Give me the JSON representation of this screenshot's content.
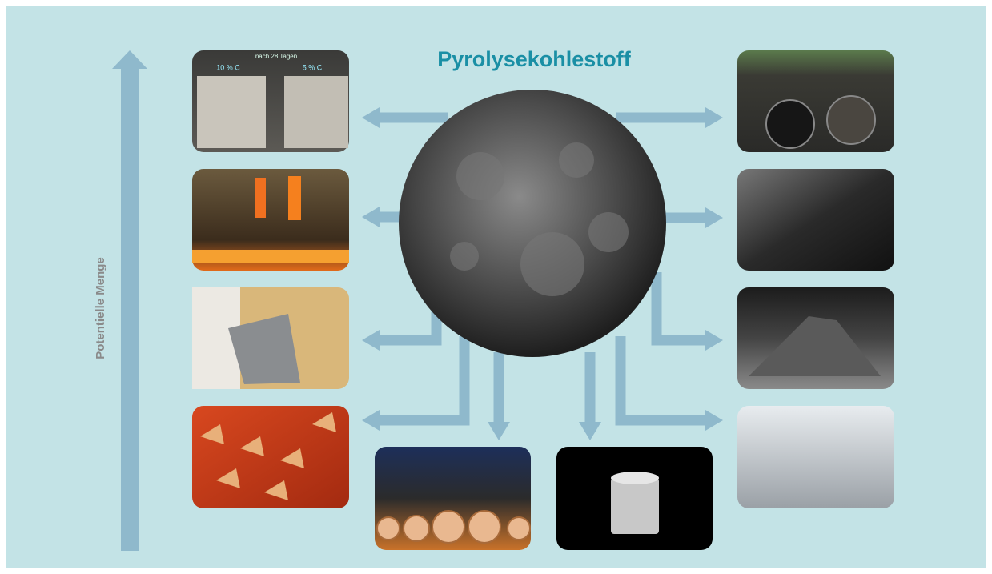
{
  "title": "Pyrolysekohlestoff",
  "axis_label": "Potentielle Menge",
  "photo_labels": [
    "nach 28 Tagen",
    "10 % C",
    "5 % C"
  ]
}
